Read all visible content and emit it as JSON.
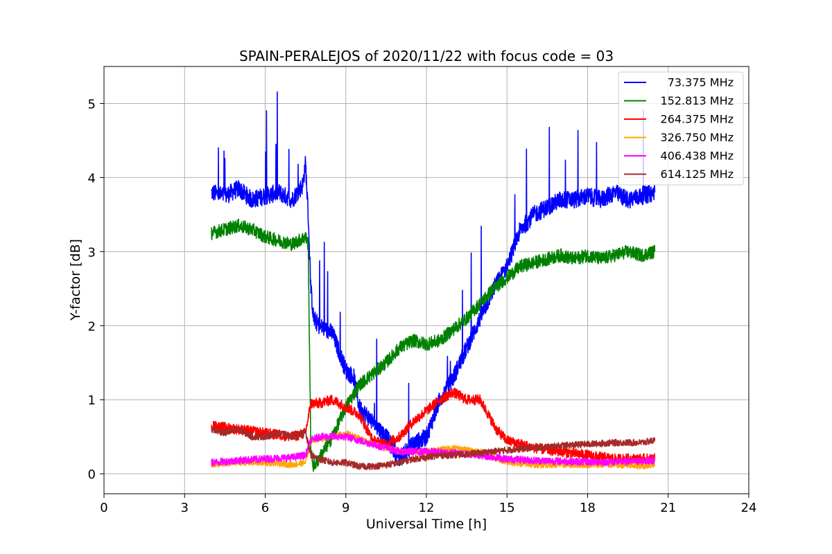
{
  "chart_data": {
    "type": "line",
    "title": "SPAIN-PERALEJOS of 2020/11/22 with focus code = 03",
    "xlabel": "Universal Time [h]",
    "ylabel": "Y-factor [dB]",
    "xlim": [
      0,
      24
    ],
    "ylim": [
      -0.27,
      5.5
    ],
    "xticks": [
      "0",
      "3",
      "6",
      "9",
      "12",
      "15",
      "18",
      "21",
      "24"
    ],
    "yticks": [
      "0",
      "1",
      "2",
      "3",
      "4",
      "5"
    ],
    "grid": true,
    "legend_position": "top-right",
    "series": [
      {
        "name": "73.375 MHz",
        "color": "#0000ff",
        "noise": 0.12,
        "x": [
          4.0,
          4.5,
          5.0,
          5.5,
          6.0,
          6.5,
          7.0,
          7.4,
          7.5,
          7.6,
          7.7,
          7.8,
          8.0,
          8.5,
          9.0,
          9.3,
          9.5,
          10.0,
          10.5,
          11.0,
          11.5,
          12.0,
          12.5,
          13.0,
          13.5,
          14.0,
          14.5,
          15.0,
          15.5,
          16.0,
          16.5,
          17.0,
          17.5,
          18.0,
          18.5,
          19.0,
          19.5,
          20.0,
          20.5
        ],
        "y": [
          3.8,
          3.75,
          3.85,
          3.7,
          3.75,
          3.8,
          3.7,
          3.9,
          4.2,
          3.5,
          2.5,
          2.1,
          2.0,
          1.9,
          1.4,
          1.3,
          0.9,
          0.7,
          0.5,
          0.2,
          0.4,
          0.5,
          1.0,
          1.3,
          1.7,
          2.1,
          2.5,
          2.8,
          3.3,
          3.5,
          3.6,
          3.7,
          3.7,
          3.75,
          3.7,
          3.8,
          3.7,
          3.75,
          3.8
        ]
      },
      {
        "name": "152.813 MHz",
        "color": "#008000",
        "noise": 0.09,
        "x": [
          4.0,
          4.5,
          5.0,
          5.5,
          6.0,
          6.5,
          7.0,
          7.5,
          7.6,
          7.7,
          7.8,
          8.0,
          8.5,
          9.0,
          9.5,
          10.0,
          10.5,
          11.0,
          11.5,
          12.0,
          12.5,
          13.0,
          13.5,
          14.0,
          14.5,
          15.0,
          15.5,
          16.0,
          16.5,
          17.0,
          17.5,
          18.0,
          18.5,
          19.0,
          19.5,
          20.0,
          20.5
        ],
        "y": [
          3.25,
          3.3,
          3.35,
          3.3,
          3.2,
          3.15,
          3.1,
          3.2,
          3.1,
          0.3,
          0.1,
          0.2,
          0.5,
          0.9,
          1.2,
          1.35,
          1.5,
          1.7,
          1.8,
          1.75,
          1.8,
          1.95,
          2.1,
          2.3,
          2.5,
          2.65,
          2.8,
          2.85,
          2.9,
          2.95,
          2.9,
          2.95,
          2.9,
          2.95,
          3.0,
          2.95,
          3.0
        ]
      },
      {
        "name": "264.375 MHz",
        "color": "#ff0000",
        "noise": 0.07,
        "x": [
          4.0,
          5.0,
          6.0,
          7.0,
          7.5,
          7.7,
          8.0,
          8.5,
          9.0,
          9.5,
          10.0,
          10.5,
          11.0,
          11.5,
          12.0,
          12.5,
          13.0,
          13.5,
          14.0,
          14.3,
          14.6,
          15.0,
          16.0,
          17.0,
          18.0,
          19.0,
          20.0,
          20.5
        ],
        "y": [
          0.65,
          0.6,
          0.55,
          0.5,
          0.55,
          0.95,
          0.95,
          1.0,
          0.9,
          0.8,
          0.45,
          0.4,
          0.5,
          0.7,
          0.85,
          1.0,
          1.1,
          1.0,
          1.0,
          0.8,
          0.6,
          0.45,
          0.35,
          0.3,
          0.25,
          0.2,
          0.2,
          0.2
        ]
      },
      {
        "name": "326.750 MHz",
        "color": "#ffa500",
        "noise": 0.04,
        "x": [
          4.0,
          5.0,
          6.0,
          7.0,
          7.5,
          7.7,
          8.5,
          9.0,
          10.0,
          11.0,
          12.0,
          13.0,
          14.0,
          15.0,
          16.0,
          17.0,
          18.0,
          19.0,
          20.0,
          20.5
        ],
        "y": [
          0.12,
          0.15,
          0.15,
          0.12,
          0.15,
          0.45,
          0.5,
          0.55,
          0.4,
          0.3,
          0.3,
          0.35,
          0.3,
          0.15,
          0.12,
          0.12,
          0.12,
          0.12,
          0.1,
          0.12
        ]
      },
      {
        "name": "406.438 MHz",
        "color": "#ff00ff",
        "noise": 0.05,
        "x": [
          4.0,
          5.0,
          6.0,
          7.0,
          7.5,
          7.7,
          8.0,
          8.5,
          9.0,
          9.5,
          10.0,
          10.5,
          11.0,
          12.0,
          13.0,
          14.0,
          15.0,
          16.0,
          17.0,
          18.0,
          19.0,
          20.0,
          20.5
        ],
        "y": [
          0.15,
          0.18,
          0.2,
          0.22,
          0.25,
          0.45,
          0.5,
          0.5,
          0.5,
          0.45,
          0.4,
          0.35,
          0.3,
          0.3,
          0.28,
          0.25,
          0.2,
          0.18,
          0.17,
          0.16,
          0.16,
          0.17,
          0.18
        ]
      },
      {
        "name": "614.125 MHz",
        "color": "#a52a2a",
        "noise": 0.045,
        "x": [
          4.0,
          4.5,
          5.0,
          5.5,
          6.0,
          6.5,
          7.0,
          7.5,
          7.7,
          8.0,
          8.5,
          9.0,
          9.5,
          10.0,
          10.5,
          11.0,
          11.5,
          12.0,
          12.5,
          13.0,
          14.0,
          15.0,
          16.0,
          17.0,
          18.0,
          19.0,
          20.0,
          20.5
        ],
        "y": [
          0.6,
          0.55,
          0.6,
          0.5,
          0.5,
          0.55,
          0.5,
          0.55,
          0.25,
          0.2,
          0.15,
          0.15,
          0.1,
          0.1,
          0.12,
          0.15,
          0.2,
          0.22,
          0.25,
          0.25,
          0.28,
          0.32,
          0.35,
          0.38,
          0.4,
          0.42,
          0.42,
          0.45
        ]
      }
    ]
  }
}
